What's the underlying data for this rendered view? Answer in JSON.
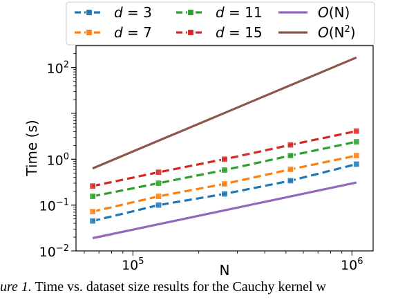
{
  "chart_data": {
    "type": "line",
    "x_scale": "log",
    "y_scale": "log",
    "xlabel": "N",
    "ylabel": "Time (s)",
    "xlim": [
      55000,
      1250000
    ],
    "ylim": [
      0.01,
      300
    ],
    "x_ticks": [
      {
        "base": "10",
        "exp": "5",
        "value": 100000
      },
      {
        "base": "10",
        "exp": "6",
        "value": 1000000
      }
    ],
    "y_ticks": [
      {
        "base": "10",
        "exp": "−2",
        "value": 0.01
      },
      {
        "base": "10",
        "exp": "−1",
        "value": 0.1
      },
      {
        "base": "10",
        "exp": "0",
        "value": 1
      },
      {
        "base": "10",
        "exp": "2",
        "value": 100
      }
    ],
    "legend_position": "top",
    "series": [
      {
        "name": "d = 3",
        "label_var": "d",
        "label_rest": " = 3",
        "color": "#1f77b4",
        "dashed": true,
        "markers": true,
        "x": [
          65536,
          131072,
          262144,
          524288,
          1048576
        ],
        "y": [
          0.045,
          0.1,
          0.175,
          0.34,
          0.78
        ]
      },
      {
        "name": "d = 7",
        "label_var": "d",
        "label_rest": " = 7",
        "color": "#ff7f0e",
        "dashed": true,
        "markers": true,
        "x": [
          65536,
          131072,
          262144,
          524288,
          1048576
        ],
        "y": [
          0.072,
          0.155,
          0.29,
          0.6,
          1.2
        ]
      },
      {
        "name": "d = 11",
        "label_var": "d",
        "label_rest": " = 11",
        "color": "#2ca02c",
        "dashed": true,
        "markers": true,
        "x": [
          65536,
          131072,
          262144,
          524288,
          1048576
        ],
        "y": [
          0.155,
          0.3,
          0.58,
          1.2,
          2.4
        ]
      },
      {
        "name": "d = 15",
        "label_var": "d",
        "label_rest": " = 15",
        "color": "#d62728",
        "dashed": true,
        "markers": true,
        "x": [
          65536,
          131072,
          262144,
          524288,
          1048576
        ],
        "y": [
          0.26,
          0.52,
          1.0,
          2.05,
          4.1
        ]
      },
      {
        "name": "O(N)",
        "label_var": "O",
        "label_rest": "(N)",
        "color": "#9467bd",
        "dashed": false,
        "markers": false,
        "x": [
          65536,
          1048576
        ],
        "y": [
          0.019,
          0.31
        ]
      },
      {
        "name": "O(N2)",
        "label_var": "O",
        "label_rest": "(N",
        "label_sup": "2",
        "label_end": ")",
        "color": "#8c564b",
        "dashed": false,
        "markers": false,
        "x": [
          65536,
          1048576
        ],
        "y": [
          0.63,
          165
        ]
      }
    ]
  },
  "caption": {
    "prefix": "ure 1.",
    "text": " Time vs. dataset size results for the Cauchy kernel w"
  }
}
